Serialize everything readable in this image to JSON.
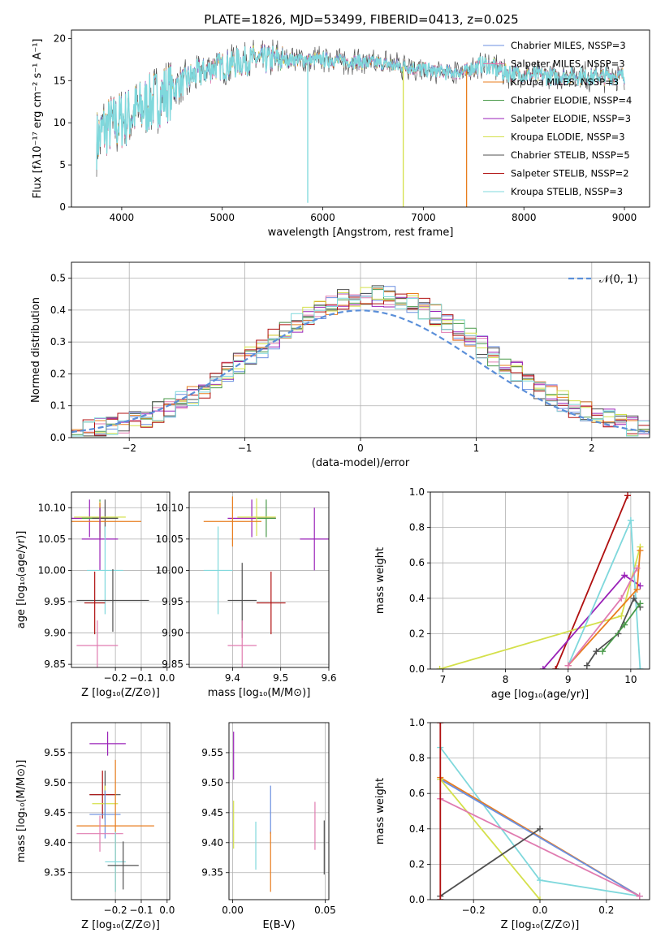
{
  "figure": {
    "title": "PLATE=1826, MJD=53499, FIBERID=0413, z=0.025"
  },
  "colors": {
    "chabrier_miles": "#6b8fe0",
    "salpeter_miles": "#e07bb0",
    "kroupa_miles": "#e87d1e",
    "chabrier_elodie": "#4a9a4a",
    "salpeter_elodie": "#9a22b8",
    "kroupa_elodie": "#d4e04a",
    "chabrier_stelib": "#505050",
    "salpeter_stelib": "#b01010",
    "kroupa_stelib": "#7fd8dc",
    "gauss": "#5b8fd9"
  },
  "chart_data": [
    {
      "id": "spectrum",
      "type": "line",
      "xlabel": "wavelength [Angstrom, rest frame]",
      "ylabel": "Flux [fλ10⁻¹⁷ erg cm⁻² s⁻¹ A⁻¹]",
      "xlim": [
        3500,
        9250
      ],
      "ylim": [
        0,
        21
      ],
      "xticks": [
        4000,
        5000,
        6000,
        7000,
        8000,
        9000
      ],
      "yticks": [
        0,
        5,
        10,
        15,
        20
      ],
      "legend_position": "top-right",
      "legend": [
        "Chabrier MILES, NSSP=3",
        "Salpeter MILES, NSSP=3",
        "Kroupa MILES, NSSP=3",
        "Chabrier ELODIE, NSSP=4",
        "Salpeter ELODIE, NSSP=3",
        "Kroupa ELODIE, NSSP=3",
        "Chabrier STELIB, NSSP=5",
        "Salpeter STELIB, NSSP=2",
        "Kroupa STELIB, NSSP=3"
      ],
      "continuum": [
        [
          3750,
          8
        ],
        [
          3850,
          9.5
        ],
        [
          3950,
          10
        ],
        [
          4100,
          11
        ],
        [
          4300,
          12.5
        ],
        [
          4500,
          14
        ],
        [
          4700,
          15.5
        ],
        [
          4900,
          16.5
        ],
        [
          5100,
          17
        ],
        [
          5300,
          17.5
        ],
        [
          5500,
          17.5
        ],
        [
          5800,
          17.5
        ],
        [
          6000,
          17.5
        ],
        [
          6300,
          17.3
        ],
        [
          6600,
          17
        ],
        [
          6900,
          16.5
        ],
        [
          7200,
          16
        ],
        [
          7400,
          16
        ],
        [
          7600,
          17
        ],
        [
          7800,
          16
        ],
        [
          8000,
          15.7
        ],
        [
          8300,
          15.5
        ],
        [
          8600,
          15.5
        ],
        [
          8900,
          15.5
        ],
        [
          9000,
          15.5
        ]
      ],
      "dropouts": [
        [
          5850,
          0.5
        ],
        [
          6800,
          0
        ],
        [
          7430,
          0
        ]
      ]
    },
    {
      "id": "residuals",
      "type": "line",
      "xlabel": "(data-model)/error",
      "ylabel": "Normed distribution",
      "xlim": [
        -2.5,
        2.5
      ],
      "ylim": [
        0,
        0.55
      ],
      "xticks": [
        -2,
        -1,
        0,
        1,
        2
      ],
      "yticks": [
        0.0,
        0.1,
        0.2,
        0.3,
        0.4,
        0.5
      ],
      "grid": true,
      "legend_position": "top-right",
      "legend": [
        "𝒩(0, 1)"
      ]
    },
    {
      "id": "age_vs_Z",
      "type": "scatter",
      "xlabel": "Z [log₁₀(Z/Z⊙)]",
      "ylabel": "age  [log₁₀(age/yr)]",
      "xlim": [
        -0.37,
        0.01
      ],
      "ylim": [
        9.845,
        10.125
      ],
      "xticks": [
        -0.2,
        -0.1,
        0.0
      ],
      "yticks": [
        9.85,
        9.9,
        9.95,
        10.0,
        10.05,
        10.1
      ],
      "grid": true,
      "points": [
        {
          "x": -0.3,
          "y": 10.083,
          "xerr": 0.07,
          "yerr": 0.03,
          "c": "salpeter_elodie"
        },
        {
          "x": -0.26,
          "y": 10.083,
          "xerr": 0.07,
          "yerr": 0.03,
          "c": "chabrier_elodie"
        },
        {
          "x": -0.24,
          "y": 10.083,
          "xerr": 0.05,
          "yerr": 0.03,
          "c": "chabrier_stelib"
        },
        {
          "x": -0.26,
          "y": 10.085,
          "xerr": 0.1,
          "yerr": 0.025,
          "c": "kroupa_elodie"
        },
        {
          "x": -0.26,
          "y": 10.078,
          "xerr": 0.16,
          "yerr": 0.03,
          "c": "kroupa_miles"
        },
        {
          "x": -0.26,
          "y": 10.05,
          "xerr": 0.07,
          "yerr": 0.05,
          "c": "salpeter_elodie"
        },
        {
          "x": -0.24,
          "y": 10.0,
          "xerr": 0.07,
          "yerr": 0.07,
          "c": "kroupa_stelib"
        },
        {
          "x": -0.21,
          "y": 9.952,
          "xerr": 0.14,
          "yerr": 0.05,
          "c": "chabrier_stelib"
        },
        {
          "x": -0.28,
          "y": 9.948,
          "xerr": 0.04,
          "yerr": 0.05,
          "c": "salpeter_stelib"
        },
        {
          "x": -0.27,
          "y": 9.88,
          "xerr": 0.08,
          "yerr": 0.04,
          "c": "salpeter_miles"
        }
      ]
    },
    {
      "id": "age_vs_mass",
      "type": "scatter",
      "xlabel": "mass [log₁₀(M/M⊙)]",
      "ylabel": "",
      "xlim": [
        9.31,
        9.6
      ],
      "ylim": [
        9.845,
        10.125
      ],
      "xticks": [
        9.4,
        9.5,
        9.6
      ],
      "yticks": [
        9.85,
        9.9,
        9.95,
        10.0,
        10.05,
        10.1
      ],
      "grid": true,
      "points": [
        {
          "x": 9.44,
          "y": 10.083,
          "xerr": 0.05,
          "yerr": 0.03,
          "c": "salpeter_elodie"
        },
        {
          "x": 9.47,
          "y": 10.083,
          "xerr": 0.02,
          "yerr": 0.03,
          "c": "chabrier_elodie"
        },
        {
          "x": 9.45,
          "y": 10.085,
          "xerr": 0.04,
          "yerr": 0.03,
          "c": "kroupa_elodie"
        },
        {
          "x": 9.4,
          "y": 10.078,
          "xerr": 0.06,
          "yerr": 0.04,
          "c": "kroupa_miles"
        },
        {
          "x": 9.57,
          "y": 10.05,
          "xerr": 0.03,
          "yerr": 0.05,
          "c": "salpeter_elodie"
        },
        {
          "x": 9.37,
          "y": 10.0,
          "xerr": 0.03,
          "yerr": 0.07,
          "c": "kroupa_stelib"
        },
        {
          "x": 9.42,
          "y": 9.952,
          "xerr": 0.03,
          "yerr": 0.06,
          "c": "chabrier_stelib"
        },
        {
          "x": 9.48,
          "y": 9.948,
          "xerr": 0.03,
          "yerr": 0.05,
          "c": "salpeter_stelib"
        },
        {
          "x": 9.42,
          "y": 9.88,
          "xerr": 0.03,
          "yerr": 0.04,
          "c": "salpeter_miles"
        }
      ]
    },
    {
      "id": "weight_vs_age",
      "type": "line",
      "xlabel": "age  [log₁₀(age/yr)]",
      "ylabel": "mass weight",
      "xlim": [
        6.8,
        10.3
      ],
      "ylim": [
        0,
        1.0
      ],
      "xticks": [
        7,
        8,
        9,
        10
      ],
      "yticks": [
        0.0,
        0.2,
        0.4,
        0.6,
        0.8,
        1.0
      ],
      "grid": true,
      "series": [
        {
          "c": "salpeter_stelib",
          "points": [
            [
              8.8,
              0.0
            ],
            [
              9.95,
              0.98
            ]
          ]
        },
        {
          "c": "kroupa_elodie",
          "points": [
            [
              6.95,
              0.0
            ],
            [
              9.85,
              0.3
            ],
            [
              10.15,
              0.69
            ]
          ]
        },
        {
          "c": "salpeter_elodie",
          "points": [
            [
              8.6,
              0.0
            ],
            [
              9.9,
              0.53
            ],
            [
              10.15,
              0.47
            ]
          ]
        },
        {
          "c": "kroupa_stelib",
          "points": [
            [
              9.0,
              0.02
            ],
            [
              10.0,
              0.84
            ],
            [
              10.15,
              0.0
            ]
          ]
        },
        {
          "c": "kroupa_miles",
          "points": [
            [
              9.0,
              0.02
            ],
            [
              10.1,
              0.45
            ],
            [
              10.15,
              0.67
            ]
          ]
        },
        {
          "c": "salpeter_miles",
          "points": [
            [
              9.0,
              0.02
            ],
            [
              9.85,
              0.4
            ],
            [
              10.1,
              0.57
            ]
          ]
        },
        {
          "c": "chabrier_stelib",
          "points": [
            [
              9.3,
              0.02
            ],
            [
              9.45,
              0.1
            ],
            [
              9.8,
              0.2
            ],
            [
              10.05,
              0.4
            ],
            [
              10.15,
              0.35
            ]
          ]
        },
        {
          "c": "chabrier_elodie",
          "points": [
            [
              9.55,
              0.1
            ],
            [
              9.9,
              0.25
            ],
            [
              10.15,
              0.37
            ]
          ]
        }
      ]
    },
    {
      "id": "mass_vs_Z",
      "type": "scatter",
      "xlabel": "Z [log₁₀(Z/Z⊙)]",
      "ylabel": "mass [log₁₀(M/M⊙)]",
      "xlim": [
        -0.37,
        0.01
      ],
      "ylim": [
        9.305,
        9.6
      ],
      "xticks": [
        -0.2,
        -0.1,
        0.0
      ],
      "yticks": [
        9.35,
        9.4,
        9.45,
        9.5,
        9.55
      ],
      "grid": true,
      "points": [
        {
          "x": -0.23,
          "y": 9.565,
          "xerr": 0.07,
          "yerr": 0.02,
          "c": "salpeter_elodie"
        },
        {
          "x": -0.24,
          "y": 9.48,
          "xerr": 0.06,
          "yerr": 0.04,
          "c": "chabrier_stelib"
        },
        {
          "x": -0.25,
          "y": 9.48,
          "xerr": 0.05,
          "yerr": 0.04,
          "c": "salpeter_stelib"
        },
        {
          "x": -0.24,
          "y": 9.465,
          "xerr": 0.05,
          "yerr": 0.03,
          "c": "kroupa_elodie"
        },
        {
          "x": -0.24,
          "y": 9.447,
          "xerr": 0.06,
          "yerr": 0.04,
          "c": "chabrier_miles"
        },
        {
          "x": -0.2,
          "y": 9.428,
          "xerr": 0.15,
          "yerr": 0.11,
          "c": "kroupa_miles"
        },
        {
          "x": -0.26,
          "y": 9.415,
          "xerr": 0.09,
          "yerr": 0.03,
          "c": "salpeter_miles"
        },
        {
          "x": -0.2,
          "y": 9.368,
          "xerr": 0.04,
          "yerr": 0.05,
          "c": "kroupa_stelib"
        },
        {
          "x": -0.17,
          "y": 9.362,
          "xerr": 0.06,
          "yerr": 0.04,
          "c": "chabrier_stelib"
        }
      ]
    },
    {
      "id": "mass_vs_ebv",
      "type": "scatter",
      "xlabel": "E(B-V)",
      "ylabel": "",
      "xlim": [
        -0.002,
        0.052
      ],
      "ylim": [
        9.305,
        9.6
      ],
      "xticks": [
        0.0,
        0.05
      ],
      "yticks": [
        9.35,
        9.4,
        9.45,
        9.5,
        9.55
      ],
      "grid": true,
      "points": [
        {
          "x": 0.0005,
          "y": 9.545,
          "xerr": 0,
          "yerr": 0.04,
          "c": "salpeter_elodie"
        },
        {
          "x": 0.0005,
          "y": 9.43,
          "xerr": 0,
          "yerr": 0.04,
          "c": "kroupa_elodie"
        },
        {
          "x": 0.0125,
          "y": 9.395,
          "xerr": 0,
          "yerr": 0.04,
          "c": "kroupa_stelib"
        },
        {
          "x": 0.0205,
          "y": 9.455,
          "xerr": 0,
          "yerr": 0.04,
          "c": "chabrier_miles"
        },
        {
          "x": 0.0205,
          "y": 9.368,
          "xerr": 0,
          "yerr": 0.05,
          "c": "kroupa_miles"
        },
        {
          "x": 0.0445,
          "y": 9.428,
          "xerr": 0,
          "yerr": 0.04,
          "c": "salpeter_miles"
        },
        {
          "x": 0.0495,
          "y": 9.392,
          "xerr": 0,
          "yerr": 0.045,
          "c": "chabrier_stelib"
        }
      ]
    },
    {
      "id": "weight_vs_Z",
      "type": "line",
      "xlabel": "Z [log₁₀(Z/Z⊙)]",
      "ylabel": "mass weight",
      "xlim": [
        -0.33,
        0.33
      ],
      "ylim": [
        0,
        1.0
      ],
      "xticks": [
        -0.2,
        0.0,
        0.2
      ],
      "yticks": [
        0.0,
        0.2,
        0.4,
        0.6,
        0.8,
        1.0
      ],
      "grid": true,
      "series": [
        {
          "c": "kroupa_stelib",
          "points": [
            [
              -0.3,
              0.86
            ],
            [
              0.0,
              0.11
            ],
            [
              0.3,
              0.02
            ]
          ]
        },
        {
          "c": "kroupa_miles",
          "points": [
            [
              -0.3,
              0.69
            ],
            [
              0.3,
              0.02
            ]
          ]
        },
        {
          "c": "chabrier_miles",
          "points": [
            [
              -0.3,
              0.68
            ],
            [
              0.3,
              0.02
            ]
          ]
        },
        {
          "c": "kroupa_elodie",
          "points": [
            [
              -0.3,
              0.68
            ],
            [
              0.0,
              0.0
            ]
          ]
        },
        {
          "c": "salpeter_miles",
          "points": [
            [
              -0.3,
              0.57
            ],
            [
              0.3,
              0.02
            ]
          ]
        },
        {
          "c": "chabrier_stelib",
          "points": [
            [
              -0.3,
              0.02
            ],
            [
              0.0,
              0.4
            ]
          ]
        },
        {
          "c": "salpeter_stelib",
          "points": [
            [
              -0.3,
              0.0
            ],
            [
              -0.3,
              1.0
            ]
          ]
        }
      ]
    }
  ]
}
